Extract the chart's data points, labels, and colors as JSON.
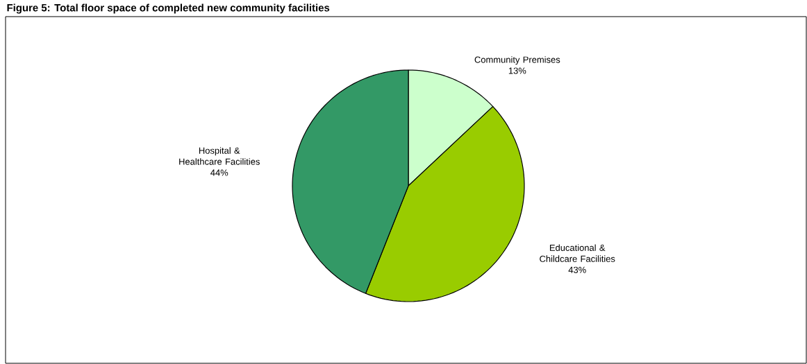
{
  "chart_data": {
    "type": "pie",
    "title": "Figure 5: Total floor space of completed new community facilities",
    "categories": [
      "Community Premises",
      "Educational & Childcare Facilities",
      "Hospital & Healthcare Facilities"
    ],
    "values": [
      13,
      43,
      44
    ],
    "value_labels": [
      "13%",
      "43%",
      "44%"
    ],
    "colors": [
      "#ccffcc",
      "#99cc00",
      "#339966"
    ]
  }
}
